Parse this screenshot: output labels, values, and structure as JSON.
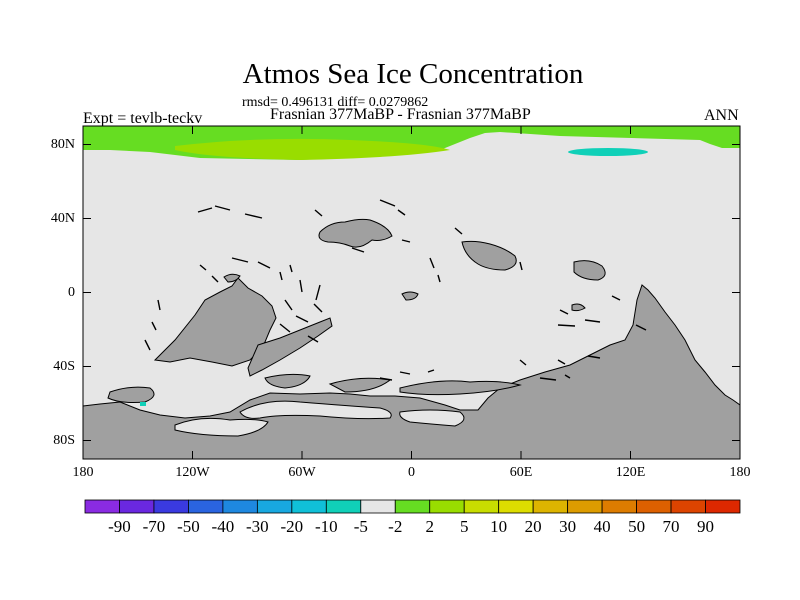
{
  "title": "Atmos Sea Ice Concentration",
  "stats": "rmsd= 0.496131 diff= 0.0279862",
  "experiment": "Expt = tevlb-teckv",
  "comparison": "Frasnian 377MaBP - Frasnian 377MaBP",
  "season": "ANN",
  "lat_ticks": [
    {
      "label": "80N",
      "value": 80
    },
    {
      "label": "40N",
      "value": 40
    },
    {
      "label": "0",
      "value": 0
    },
    {
      "label": "40S",
      "value": -40
    },
    {
      "label": "80S",
      "value": -80
    }
  ],
  "lon_ticks": [
    {
      "label": "180",
      "value": -180
    },
    {
      "label": "120W",
      "value": -120
    },
    {
      "label": "60W",
      "value": -60
    },
    {
      "label": "0",
      "value": 0
    },
    {
      "label": "60E",
      "value": 60
    },
    {
      "label": "120E",
      "value": 120
    },
    {
      "label": "180",
      "value": 180
    }
  ],
  "colorbar": {
    "colors": [
      "#8a2be2",
      "#6a28e0",
      "#3a3ae0",
      "#2a64e0",
      "#1e88e0",
      "#18a8e0",
      "#10c0d8",
      "#10d0b8",
      "#e6e6e6",
      "#66dd22",
      "#99dd00",
      "#c8dd00",
      "#dddd00",
      "#ddb400",
      "#dd9c00",
      "#dd7c00",
      "#dd6000",
      "#dd4400",
      "#dd2800"
    ],
    "labels": [
      "-90",
      "-70",
      "-50",
      "-40",
      "-30",
      "-20",
      "-10",
      "-5",
      "-2",
      "2",
      "5",
      "10",
      "20",
      "30",
      "40",
      "50",
      "70",
      "90"
    ]
  },
  "map_colors": {
    "land": "#a0a0a0",
    "ocean_no_change": "#e6e6e6",
    "ice_gain": "#66dd22",
    "ice_gain_strong": "#99dd00",
    "ice_loss": "#10d0b8"
  }
}
